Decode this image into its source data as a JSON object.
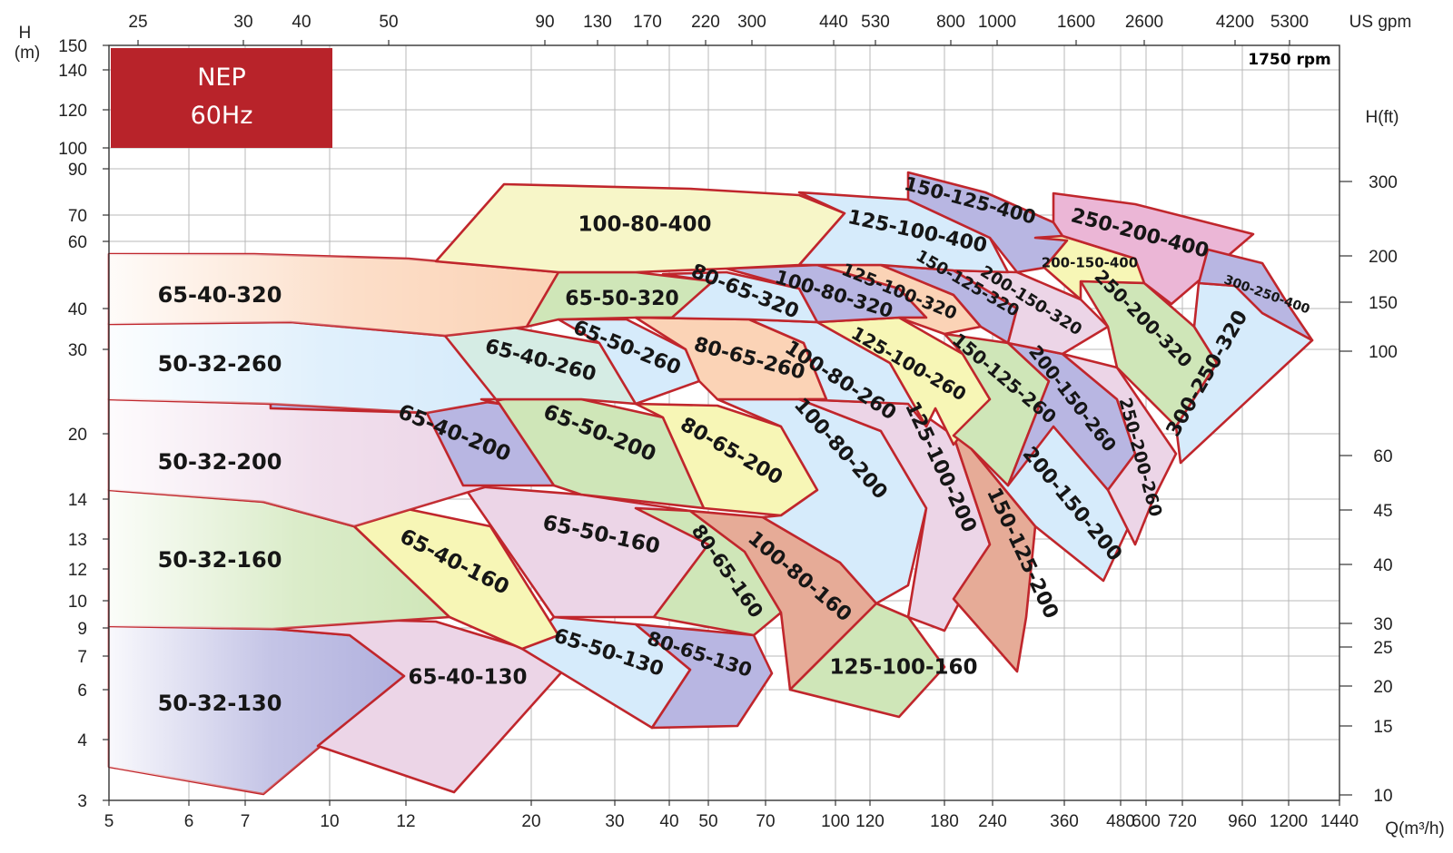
{
  "badge": {
    "line1": "NEP",
    "line2": "60Hz"
  },
  "chart_data": {
    "type": "area",
    "title": "",
    "speed_label": "1750 rpm",
    "xlabel": "Q(m³/h)",
    "ylabel_left": "H\n(m)",
    "xlabel_top": "US gpm",
    "ylabel_right": "H(ft)",
    "x_ticks_bottom": [
      "5",
      "6",
      "7",
      "10",
      "12",
      "20",
      "30",
      "40",
      "50",
      "70",
      "100",
      "120",
      "180",
      "240",
      "360",
      "480",
      "600",
      "720",
      "960",
      "1200",
      "1440"
    ],
    "x_ticks_top": [
      "25",
      "30",
      "40",
      "50",
      "90",
      "130",
      "170",
      "220",
      "300",
      "440",
      "530",
      "800",
      "1000",
      "1600",
      "2600",
      "4200",
      "5300"
    ],
    "y_ticks_left": [
      "3",
      "4",
      "6",
      "7",
      "9",
      "10",
      "12",
      "13",
      "14",
      "20",
      "30",
      "40",
      "60",
      "70",
      "90",
      "100",
      "120",
      "140",
      "150"
    ],
    "y_ticks_right": [
      "10",
      "15",
      "20",
      "25",
      "30",
      "40",
      "45",
      "60",
      "100",
      "150",
      "200",
      "300"
    ],
    "grid": true,
    "colors": {
      "outline": "#c0262c",
      "badge": "#b8232a"
    },
    "regions": [
      {
        "name": "50-32-130",
        "color": "#b1b1de"
      },
      {
        "name": "65-40-130",
        "color": "#ecd5e7"
      },
      {
        "name": "65-50-130",
        "color": "#d6ebfb"
      },
      {
        "name": "80-65-130",
        "color": "#b8b6e2"
      },
      {
        "name": "50-32-160",
        "color": "#cfe6b8"
      },
      {
        "name": "65-40-160",
        "color": "#f7f6b6"
      },
      {
        "name": "65-50-160",
        "color": "#ecd5e7"
      },
      {
        "name": "80-65-160",
        "color": "#cfe6b8"
      },
      {
        "name": "100-80-160",
        "color": "#e6ab97"
      },
      {
        "name": "125-100-160",
        "color": "#cfe6b8"
      },
      {
        "name": "50-32-200",
        "color": "#ecd5e7"
      },
      {
        "name": "65-40-200",
        "color": "#b8b6e2"
      },
      {
        "name": "65-50-200",
        "color": "#cfe6b8"
      },
      {
        "name": "80-65-200",
        "color": "#f7f6b6"
      },
      {
        "name": "100-80-200",
        "color": "#d6ebfb"
      },
      {
        "name": "125-100-200",
        "color": "#ecd5e7"
      },
      {
        "name": "150-125-200",
        "color": "#e6ab97"
      },
      {
        "name": "200-150-200",
        "color": "#d6ebfb"
      },
      {
        "name": "50-32-260",
        "color": "#d6ebfb"
      },
      {
        "name": "65-40-260",
        "color": "#d5ece4"
      },
      {
        "name": "65-50-260",
        "color": "#d6ebfb"
      },
      {
        "name": "80-65-260",
        "color": "#fbd3b6"
      },
      {
        "name": "100-80-260",
        "color": "#d6ebfb"
      },
      {
        "name": "125-100-260",
        "color": "#f7f6b6"
      },
      {
        "name": "150-125-260",
        "color": "#cfe6b8"
      },
      {
        "name": "200-150-260",
        "color": "#b8b6e2"
      },
      {
        "name": "250-200-260",
        "color": "#ecd5e7"
      },
      {
        "name": "65-40-320",
        "color": "#fbd3b6"
      },
      {
        "name": "65-50-320",
        "color": "#cfe6b8"
      },
      {
        "name": "80-65-320",
        "color": "#d6ebfb"
      },
      {
        "name": "100-80-320",
        "color": "#b8b6e2"
      },
      {
        "name": "125-100-320",
        "color": "#fbd3b6"
      },
      {
        "name": "150-125-320",
        "color": "#b8b6e2"
      },
      {
        "name": "200-150-320",
        "color": "#ecd5e7"
      },
      {
        "name": "250-200-320",
        "color": "#cfe6b8"
      },
      {
        "name": "300-250-320",
        "color": "#d6ebfb"
      },
      {
        "name": "100-80-400",
        "color": "#f7f6c8"
      },
      {
        "name": "125-100-400",
        "color": "#d6ebfb"
      },
      {
        "name": "150-125-400",
        "color": "#b8b6e2"
      },
      {
        "name": "200-150-400",
        "color": "#f7f6b6"
      },
      {
        "name": "250-200-400",
        "color": "#ebb6d6"
      },
      {
        "name": "300-250-400",
        "color": "#b8b6e2"
      }
    ]
  }
}
